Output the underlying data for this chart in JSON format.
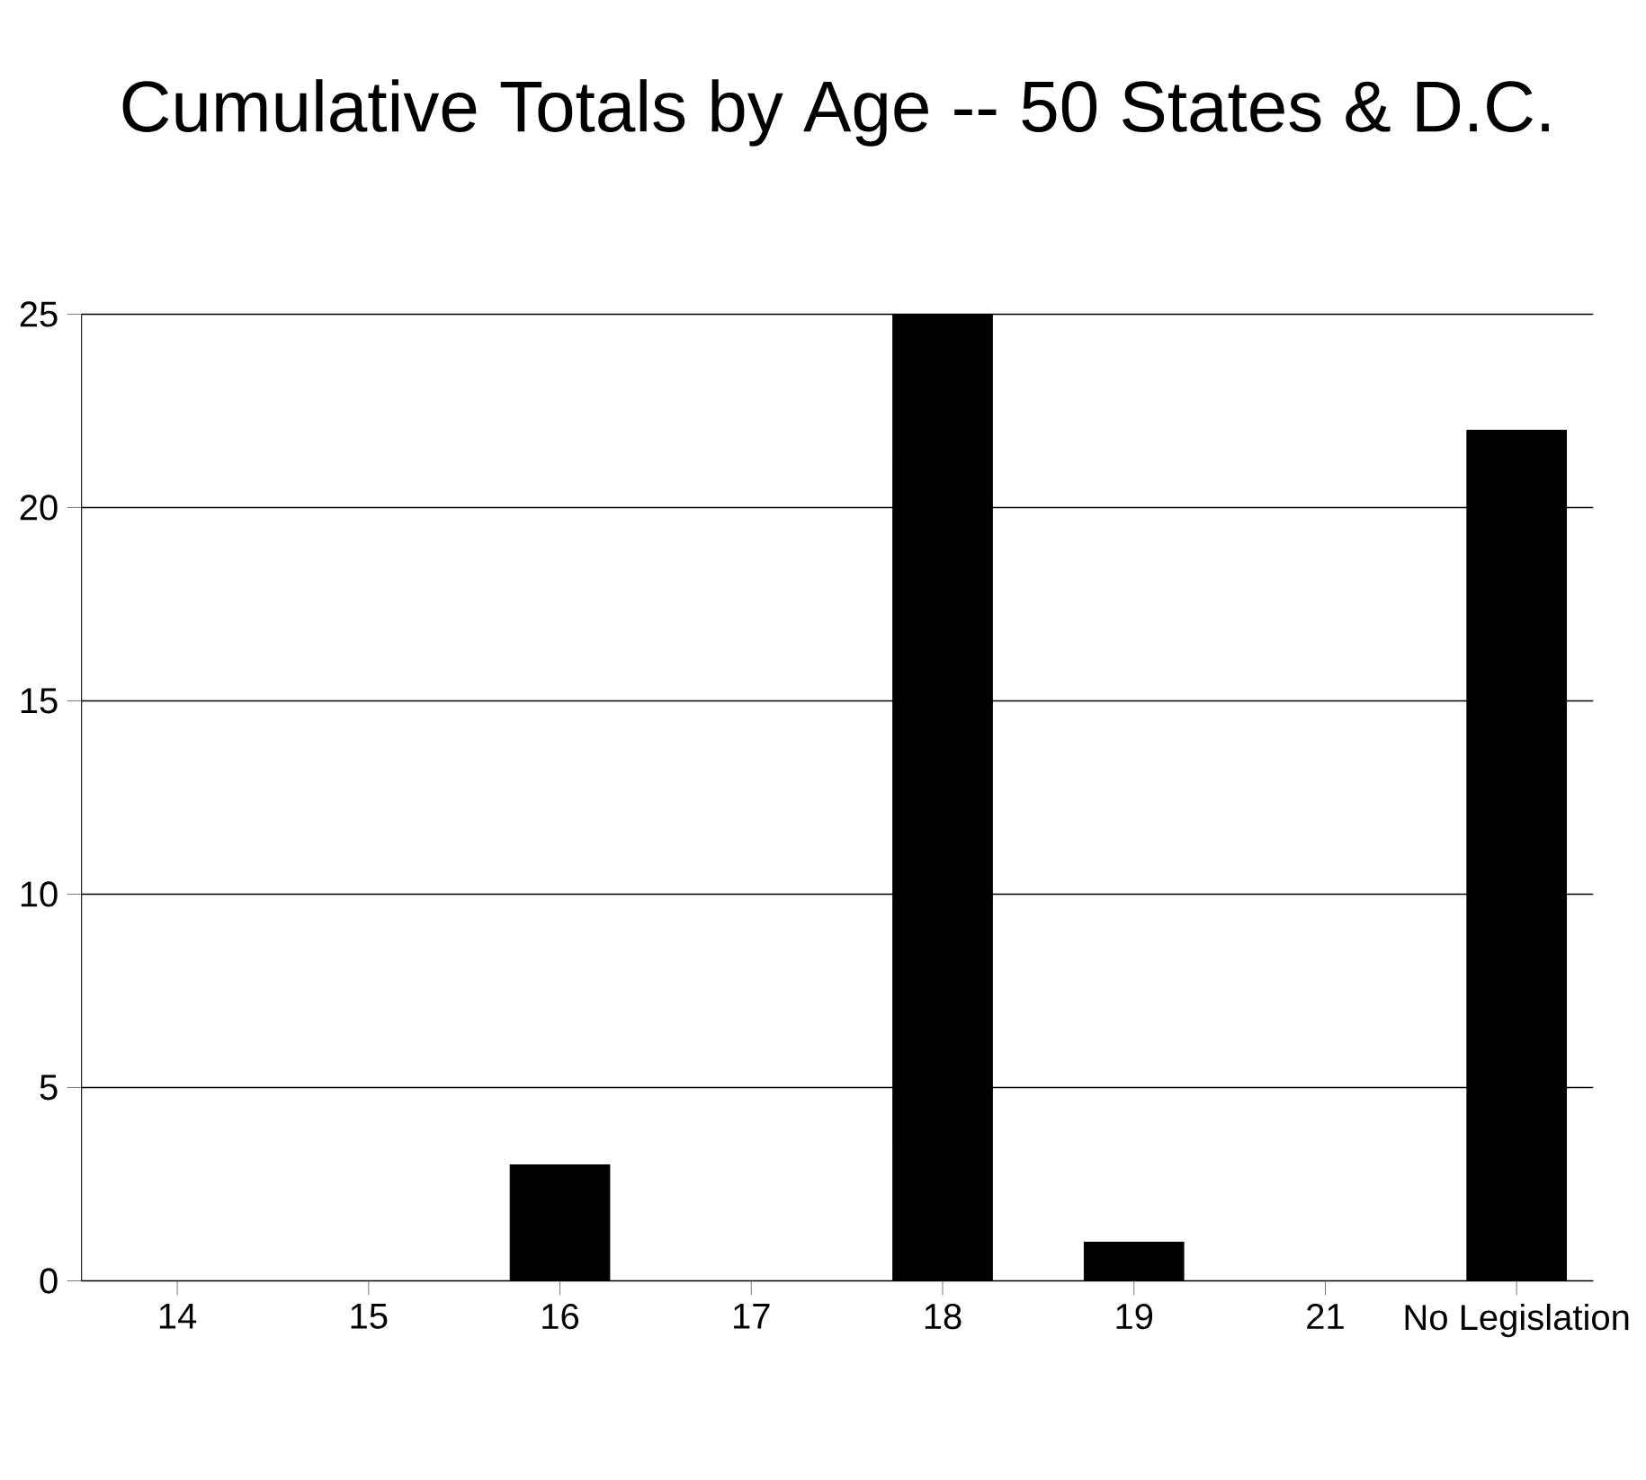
{
  "chart_data": {
    "type": "bar",
    "title": "Cumulative Totals by Age -- 50 States & D.C.",
    "categories": [
      "14",
      "15",
      "16",
      "17",
      "18",
      "19",
      "21",
      "No Legislation"
    ],
    "values": [
      0,
      0,
      3,
      0,
      25,
      1,
      0,
      22
    ],
    "color": "#000000",
    "ylim": [
      0,
      25
    ],
    "yticks": [
      0,
      5,
      10,
      15,
      20,
      25
    ],
    "grid": "y"
  }
}
